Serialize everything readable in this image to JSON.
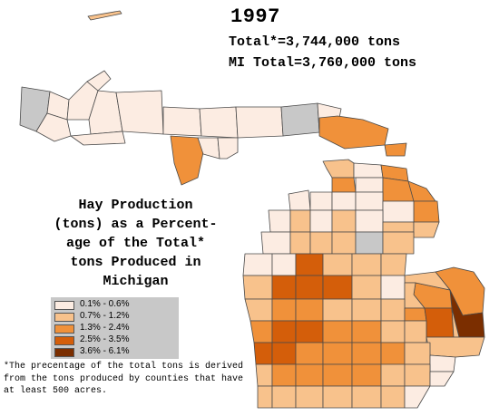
{
  "header": {
    "year": "1997",
    "total_line": "Total*=3,744,000 tons",
    "mi_total_line": "MI Total=3,760,000 tons"
  },
  "title_lines": [
    "Hay Production",
    "(tons) as a Percent-",
    "age of the Total*",
    "tons Produced in",
    "Michigan"
  ],
  "legend": [
    {
      "label": "0.1% - 0.6%",
      "color": "#fcece2"
    },
    {
      "label": "0.7% - 1.2%",
      "color": "#f8c28c"
    },
    {
      "label": "1.3% - 2.4%",
      "color": "#f0913a"
    },
    {
      "label": "2.5% - 3.5%",
      "color": "#d45e0a"
    },
    {
      "label": "3.6% - 6.1%",
      "color": "#7b2e00"
    }
  ],
  "no_data_color": "#c8c8c8",
  "footnote": "*The precentage of the total tons is derived from the tons produced by counties that have at least 500 acres."
}
